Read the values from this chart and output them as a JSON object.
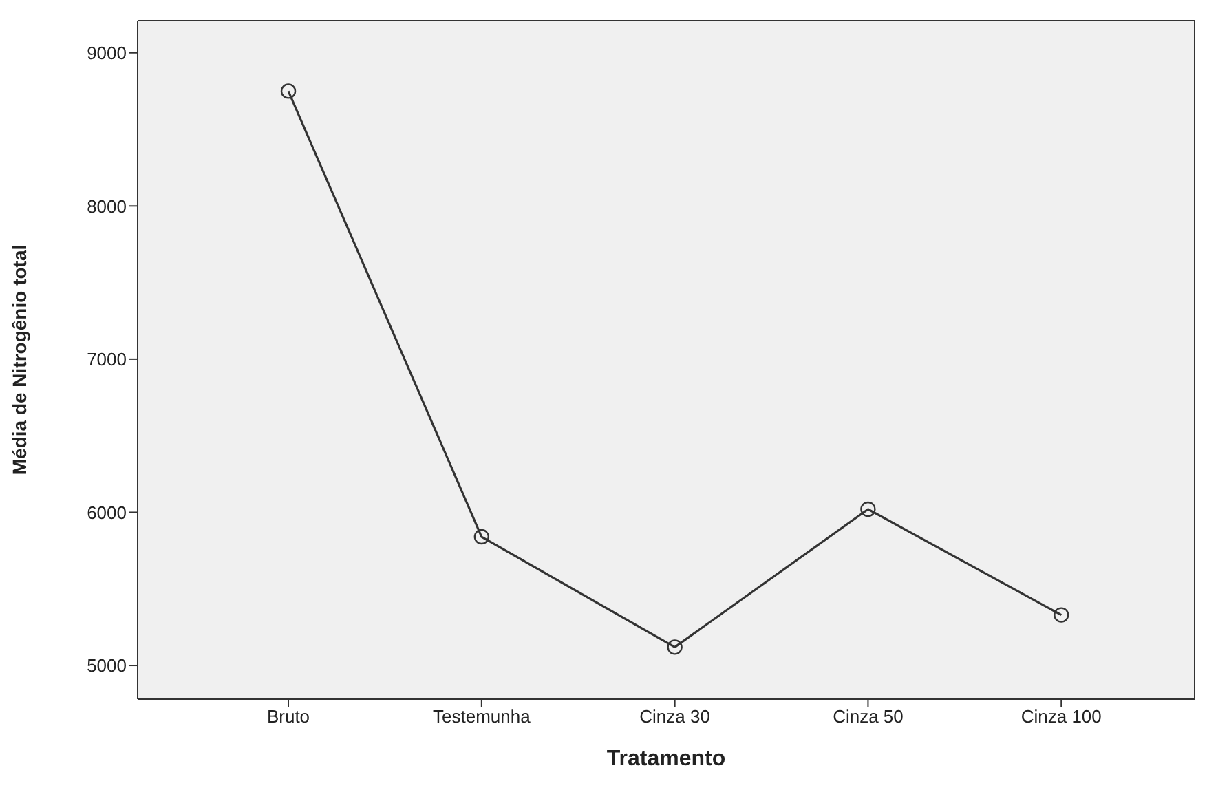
{
  "chart_data": {
    "type": "line",
    "xlabel": "Tratamento",
    "ylabel": "Média de Nitrogênio total",
    "categories": [
      "Bruto",
      "Testemunha",
      "Cinza 30",
      "Cinza 50",
      "Cinza 100"
    ],
    "series": [
      {
        "color": "#333333",
        "values": [
          8750,
          5840,
          5120,
          6020,
          5330
        ]
      }
    ],
    "ylim": [
      4780,
      9210
    ],
    "yticks": [
      5000,
      6000,
      7000,
      8000,
      9000
    ],
    "grid": false,
    "legend": false,
    "marker": "circle",
    "line_style": "solid"
  }
}
